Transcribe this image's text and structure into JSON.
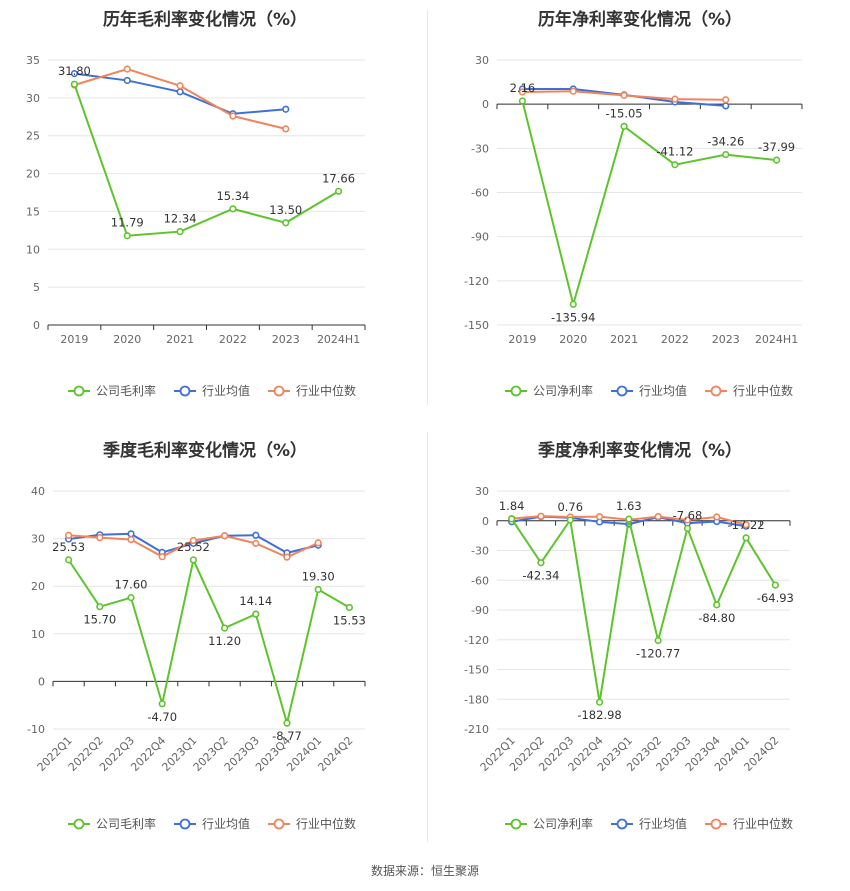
{
  "colors": {
    "company": "#5ec42e",
    "industry_avg": "#3f6fd8",
    "industry_median": "#f0845a",
    "grid": "#e6e6e6",
    "axis": "#333333"
  },
  "legend": {
    "company_gross": "公司毛利率",
    "company_net": "公司净利率",
    "industry_avg": "行业均值",
    "industry_median": "行业中位数"
  },
  "source": "数据来源：恒生聚源",
  "chart_data": [
    {
      "type": "line",
      "title": "历年毛利率变化情况（%）",
      "categories": [
        "2019",
        "2020",
        "2021",
        "2022",
        "2023",
        "2024H1"
      ],
      "ylim": [
        0,
        35
      ],
      "yticks": [
        0,
        5,
        10,
        15,
        20,
        25,
        30,
        35
      ],
      "grid": true,
      "legend_position": "bottom",
      "series": [
        {
          "name": "公司毛利率",
          "values": [
            31.8,
            11.79,
            12.34,
            15.34,
            13.5,
            17.66
          ],
          "labels": [
            "31.80",
            "11.79",
            "12.34",
            "15.34",
            "13.50",
            "17.66"
          ]
        },
        {
          "name": "行业均值",
          "values": [
            33.2,
            32.3,
            30.8,
            27.9,
            28.5,
            null
          ]
        },
        {
          "name": "行业中位数",
          "values": [
            31.7,
            33.8,
            31.6,
            27.6,
            25.9,
            null
          ]
        }
      ]
    },
    {
      "type": "line",
      "title": "历年净利率变化情况（%）",
      "categories": [
        "2019",
        "2020",
        "2021",
        "2022",
        "2023",
        "2024H1"
      ],
      "ylim": [
        -150,
        30
      ],
      "yticks": [
        -150,
        -120,
        -90,
        -60,
        -30,
        0,
        30
      ],
      "grid": true,
      "legend_position": "bottom",
      "series": [
        {
          "name": "公司净利率",
          "values": [
            2.16,
            -135.94,
            -15.05,
            -41.12,
            -34.26,
            -37.99
          ],
          "labels": [
            "2.16",
            "-135.94",
            "-15.05",
            "-41.12",
            "-34.26",
            "-37.99"
          ]
        },
        {
          "name": "行业均值",
          "values": [
            10.3,
            10.3,
            6.3,
            1.5,
            -1.2,
            null
          ]
        },
        {
          "name": "行业中位数",
          "values": [
            8.3,
            8.8,
            6.0,
            3.4,
            3.0,
            null
          ]
        }
      ]
    },
    {
      "type": "line",
      "title": "季度毛利率变化情况（%）",
      "categories": [
        "2022Q1",
        "2022Q2",
        "2022Q3",
        "2022Q4",
        "2023Q1",
        "2023Q2",
        "2023Q3",
        "2023Q4",
        "2024Q1",
        "2024Q2"
      ],
      "ylim": [
        -10,
        40
      ],
      "yticks": [
        -10,
        0,
        10,
        20,
        30,
        40
      ],
      "grid": true,
      "legend_position": "bottom",
      "series": [
        {
          "name": "公司毛利率",
          "values": [
            25.53,
            15.7,
            17.6,
            -4.7,
            25.52,
            11.2,
            14.14,
            -8.77,
            19.3,
            15.53
          ],
          "labels": [
            "25.53",
            "15.70",
            "17.60",
            "-4.70",
            "25.52",
            "11.20",
            "14.14",
            "-8.77",
            "19.30",
            "15.53"
          ]
        },
        {
          "name": "行业均值",
          "values": [
            29.9,
            30.8,
            31.0,
            27.1,
            29.0,
            30.6,
            30.7,
            27.0,
            28.6,
            null
          ]
        },
        {
          "name": "行业中位数",
          "values": [
            30.7,
            30.2,
            29.8,
            26.2,
            29.6,
            30.6,
            29.0,
            26.1,
            29.1,
            null
          ]
        }
      ]
    },
    {
      "type": "line",
      "title": "季度净利率变化情况（%）",
      "categories": [
        "2022Q1",
        "2022Q2",
        "2022Q3",
        "2022Q4",
        "2023Q1",
        "2023Q2",
        "2023Q3",
        "2023Q4",
        "2024Q1",
        "2024Q2"
      ],
      "ylim": [
        -210,
        30
      ],
      "yticks": [
        -210,
        -180,
        -150,
        -120,
        -90,
        -60,
        -30,
        0,
        30
      ],
      "grid": true,
      "legend_position": "bottom",
      "series": [
        {
          "name": "公司净利率",
          "values": [
            1.84,
            -42.34,
            0.76,
            -182.98,
            1.63,
            -120.77,
            -7.68,
            -84.8,
            -17.22,
            -64.93
          ],
          "labels": [
            "1.84",
            "-42.34",
            "0.76",
            "-182.98",
            "1.63",
            "-120.77",
            "-7.68",
            "-84.80",
            "-17.22",
            "-64.93"
          ]
        },
        {
          "name": "行业均值",
          "values": [
            -1.0,
            4.2,
            3.0,
            -1.2,
            -3.4,
            3.6,
            -2.5,
            -0.8,
            -5.5,
            null
          ]
        },
        {
          "name": "行业中位数",
          "values": [
            2.2,
            4.6,
            3.8,
            4.2,
            1.0,
            4.2,
            0.8,
            3.8,
            -4.0,
            null
          ]
        }
      ]
    }
  ]
}
